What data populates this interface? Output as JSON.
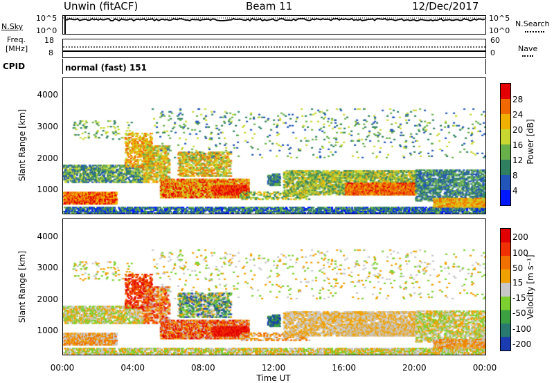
{
  "header": {
    "station": "Unwin (fitACF)",
    "beam": "Beam 11",
    "date": "12/Dec/2017"
  },
  "strip_sky": {
    "left_label": "N.Sky",
    "right_label": "N.Search",
    "left_ticks": [
      "10^5",
      "10^0"
    ],
    "right_ticks": [
      "10^5",
      "10^0"
    ]
  },
  "strip_freq": {
    "left_label_1": "Freq.",
    "left_label_2": "[MHz]",
    "right_label": "Nave",
    "left_ticks": [
      "18",
      "8"
    ],
    "right_ticks": [
      "60",
      "0"
    ]
  },
  "strip_cpid": {
    "left_label": "CPID",
    "value": "normal (fast) 151"
  },
  "chart_data": [
    {
      "type": "heatmap",
      "name": "power",
      "ylabel": "Slant Range [km]",
      "yticks": [
        "4000",
        "3000",
        "2000",
        "1000"
      ],
      "ylim": [
        200,
        4600
      ],
      "xlim": [
        0,
        24
      ],
      "colorbar_label": "Power [dB]",
      "colorbar_ticks": [
        "28",
        "24",
        "20",
        "16",
        "12",
        "8",
        "4"
      ],
      "colors": [
        "#0018ff",
        "#2255b8",
        "#2f8060",
        "#68b04a",
        "#c8d830",
        "#f0b000",
        "#f06800",
        "#e40000"
      ]
    },
    {
      "type": "heatmap",
      "name": "velocity",
      "ylabel": "Slant Range [km]",
      "yticks": [
        "4000",
        "3000",
        "2000",
        "1000"
      ],
      "ylim": [
        200,
        4600
      ],
      "xlim": [
        0,
        24
      ],
      "xticks": [
        "00:00",
        "04:00",
        "08:00",
        "12:00",
        "16:00",
        "20:00",
        "00:00"
      ],
      "xlabel": "Time UT",
      "colorbar_label": "Velocity [m s⁻¹]",
      "colorbar_ticks": [
        "200",
        "100",
        "50",
        "15",
        "-15",
        "-50",
        "-100",
        "-200"
      ],
      "colors": [
        "#1a3cb0",
        "#287a70",
        "#3aa040",
        "#7cd030",
        "#c8c8c8",
        "#f0a000",
        "#f07000",
        "#f03000",
        "#e00000"
      ]
    }
  ]
}
